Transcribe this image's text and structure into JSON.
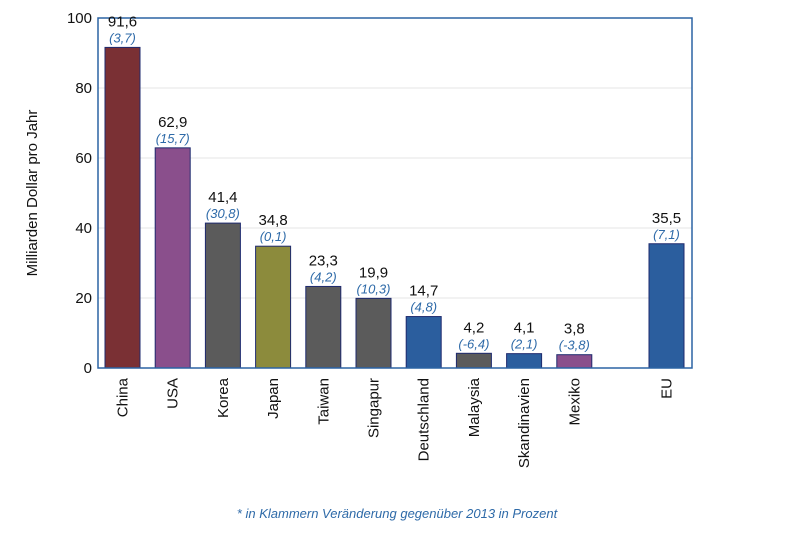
{
  "chart_data": {
    "type": "bar",
    "title": "",
    "xlabel": "",
    "ylabel": "Milliarden Dollar pro Jahr",
    "ylim": [
      0,
      100
    ],
    "yticks": [
      0,
      20,
      40,
      60,
      80,
      100
    ],
    "grid": true,
    "categories": [
      "China",
      "USA",
      "Korea",
      "Japan",
      "Taiwan",
      "Singapur",
      "Deutschland",
      "Malaysia",
      "Skandinavien",
      "Mexiko",
      "EU"
    ],
    "values": [
      91.6,
      62.9,
      41.4,
      34.8,
      23.3,
      19.9,
      14.7,
      4.2,
      4.1,
      3.8,
      35.5
    ],
    "value_labels": [
      "91,6",
      "62,9",
      "41,4",
      "34,8",
      "23,3",
      "19,9",
      "14,7",
      "4,2",
      "4,1",
      "3,8",
      "35,5"
    ],
    "change_labels": [
      "(3,7)",
      "(15,7)",
      "(30,8)",
      "(0,1)",
      "(4,2)",
      "(10,3)",
      "(4,8)",
      "(-6,4)",
      "(2,1)",
      "(-3,8)",
      "(7,1)"
    ],
    "bar_colors": [
      "#7a3034",
      "#8a4f8c",
      "#5b5b5b",
      "#8c8b3c",
      "#5b5b5b",
      "#5b5b5b",
      "#2b5e9e",
      "#5b5b5b",
      "#2b5e9e",
      "#8a4f8c",
      "#2b5e9e"
    ],
    "frame_color": "#2b63a4",
    "footnote": "* in Klammern Veränderung gegenüber 2013 in Prozent"
  }
}
